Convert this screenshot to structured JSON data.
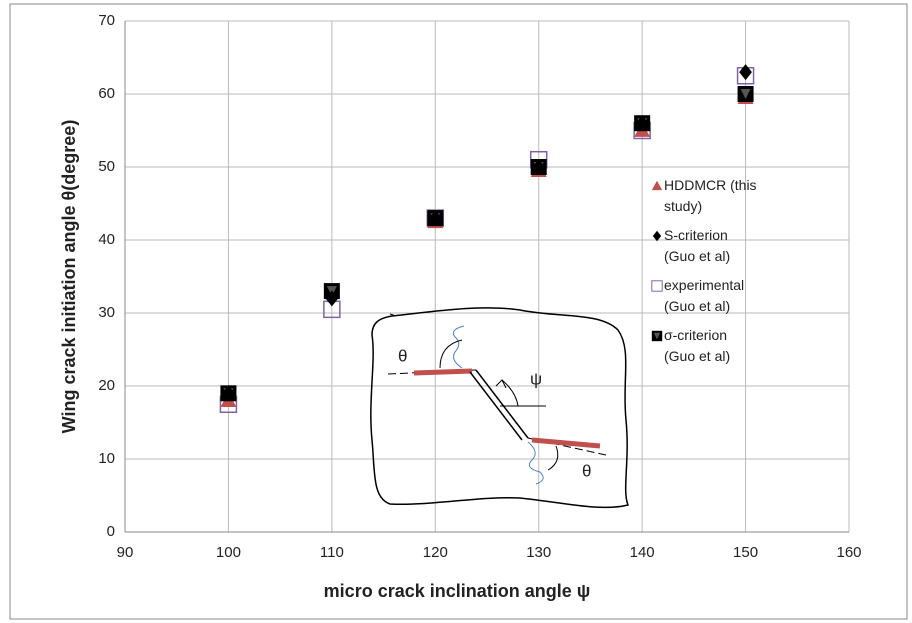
{
  "chart_data": {
    "type": "scatter",
    "xlabel": "micro crack inclination angle ψ",
    "ylabel": "Wing crack initiation angle θ(degree)",
    "xlim": [
      90,
      160
    ],
    "xticks": [
      90,
      100,
      110,
      120,
      130,
      140,
      150,
      160
    ],
    "ylim": [
      0,
      70
    ],
    "yticks": [
      0,
      10,
      20,
      30,
      40,
      50,
      60,
      70
    ],
    "grid": true,
    "legend": "right",
    "x": [
      100,
      110,
      120,
      130,
      140,
      150
    ],
    "series": [
      {
        "name": "experimental (Guo et al)",
        "color": "#8064a2",
        "marker": "square-open",
        "values": [
          17.5,
          30.5,
          43,
          51,
          55,
          62.5
        ]
      },
      {
        "name": "HDDMCR (this study)",
        "color": "#c0504d",
        "marker": "triangle",
        "values": [
          18,
          33,
          42.5,
          49.5,
          55,
          59.5
        ]
      },
      {
        "name": "σ-criterion (Guo et al)",
        "color": "#000000",
        "marker": "square-triangle",
        "values": [
          19,
          33,
          43,
          50,
          56,
          60
        ]
      },
      {
        "name": "S-criterion (Guo et al)",
        "color": "#000000",
        "marker": "diamond",
        "values": [
          19,
          32,
          43,
          50,
          56,
          63
        ]
      }
    ],
    "annotations": [
      "θ",
      "ψ",
      "θ"
    ]
  }
}
